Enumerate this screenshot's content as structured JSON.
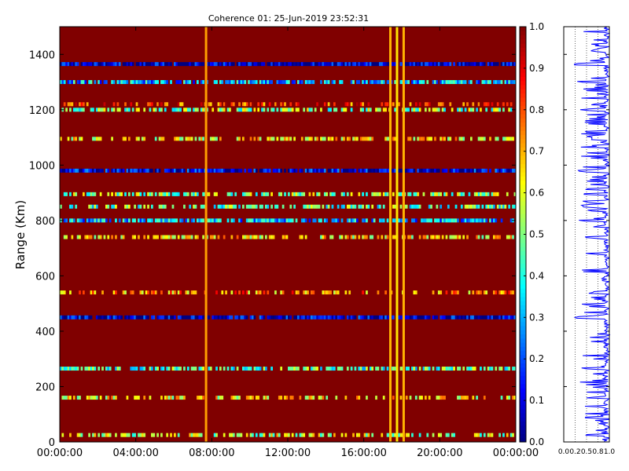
{
  "chart_data": [
    {
      "type": "heatmap",
      "title": "Coherence 01: 25-Jun-2019 23:52:31",
      "xlabel": "",
      "ylabel": "Range (Km)",
      "x_tick_labels": [
        "00:00:00",
        "04:00:00",
        "08:00:00",
        "12:00:00",
        "16:00:00",
        "20:00:00",
        "00:00:00"
      ],
      "xlim_hours": [
        0,
        24
      ],
      "y_ticks": [
        0,
        200,
        400,
        600,
        800,
        1000,
        1200,
        1400
      ],
      "ylim": [
        0,
        1500
      ],
      "colormap": "jet",
      "background_value": 1.0,
      "range_bands": [
        {
          "range_km": 25,
          "value": 0.55,
          "density": 0.55
        },
        {
          "range_km": 160,
          "value": 0.62,
          "density": 0.45
        },
        {
          "range_km": 265,
          "value": 0.45,
          "density": 0.65
        },
        {
          "range_km": 450,
          "value": 0.08,
          "density": 0.9
        },
        {
          "range_km": 540,
          "value": 0.72,
          "density": 0.45
        },
        {
          "range_km": 740,
          "value": 0.62,
          "density": 0.55
        },
        {
          "range_km": 800,
          "value": 0.3,
          "density": 0.8
        },
        {
          "range_km": 850,
          "value": 0.45,
          "density": 0.55
        },
        {
          "range_km": 895,
          "value": 0.5,
          "density": 0.6
        },
        {
          "range_km": 980,
          "value": 0.1,
          "density": 0.9
        },
        {
          "range_km": 1095,
          "value": 0.62,
          "density": 0.55
        },
        {
          "range_km": 1200,
          "value": 0.5,
          "density": 0.6
        },
        {
          "range_km": 1220,
          "value": 0.82,
          "density": 0.45
        },
        {
          "range_km": 1300,
          "value": 0.3,
          "density": 0.75
        },
        {
          "range_km": 1365,
          "value": 0.06,
          "density": 0.95
        }
      ],
      "time_stripes": [
        {
          "time_hours": 7.7,
          "value": 0.72
        },
        {
          "time_hours": 17.4,
          "value": 0.7
        },
        {
          "time_hours": 17.75,
          "value": 0.65
        },
        {
          "time_hours": 18.1,
          "value": 0.7
        }
      ],
      "colorbar": {
        "min": 0.0,
        "max": 1.0,
        "ticks": [
          "0.0",
          "0.1",
          "0.2",
          "0.3",
          "0.4",
          "0.5",
          "0.6",
          "0.7",
          "0.8",
          "0.9",
          "1.0"
        ]
      }
    },
    {
      "type": "line",
      "x_tick_labels": [
        "0.0",
        "0.2",
        "0.5",
        "0.8",
        "1.0"
      ],
      "xlim": [
        0,
        1
      ],
      "ylim": [
        0,
        1500
      ],
      "color": "#0000ff",
      "grid": true
    }
  ]
}
